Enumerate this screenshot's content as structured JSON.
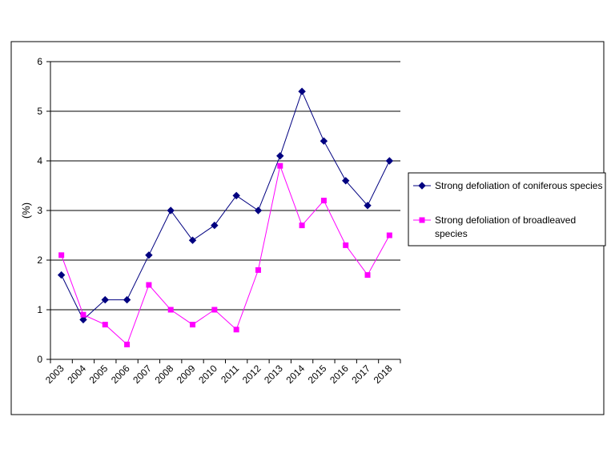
{
  "chart_data": {
    "type": "line",
    "categories": [
      "2003",
      "2004",
      "2005",
      "2006",
      "2007",
      "2008",
      "2009",
      "2010",
      "2011",
      "2012",
      "2013",
      "2014",
      "2015",
      "2016",
      "2017",
      "2018"
    ],
    "series": [
      {
        "name": "Strong defoliation of coniferous species",
        "marker": "diamond",
        "color": "#000080",
        "values": [
          1.7,
          0.8,
          1.2,
          1.2,
          2.1,
          3.0,
          2.4,
          2.7,
          3.3,
          3.0,
          4.1,
          5.4,
          4.4,
          3.6,
          3.1,
          4.0
        ]
      },
      {
        "name": "Strong defoliation of broadleaved species",
        "legend_lines": [
          "Strong defoliation of broadleaved",
          "species"
        ],
        "marker": "square",
        "color": "#ff00ff",
        "values": [
          2.1,
          0.9,
          0.7,
          0.3,
          1.5,
          1.0,
          0.7,
          1.0,
          0.6,
          1.8,
          3.9,
          2.7,
          3.2,
          2.3,
          1.7,
          2.5
        ]
      }
    ],
    "ylabel": "(%)",
    "ylim": [
      0,
      6
    ],
    "yticks": [
      0,
      1,
      2,
      3,
      4,
      5,
      6
    ],
    "grid": "horizontal",
    "legend_position": "right"
  }
}
